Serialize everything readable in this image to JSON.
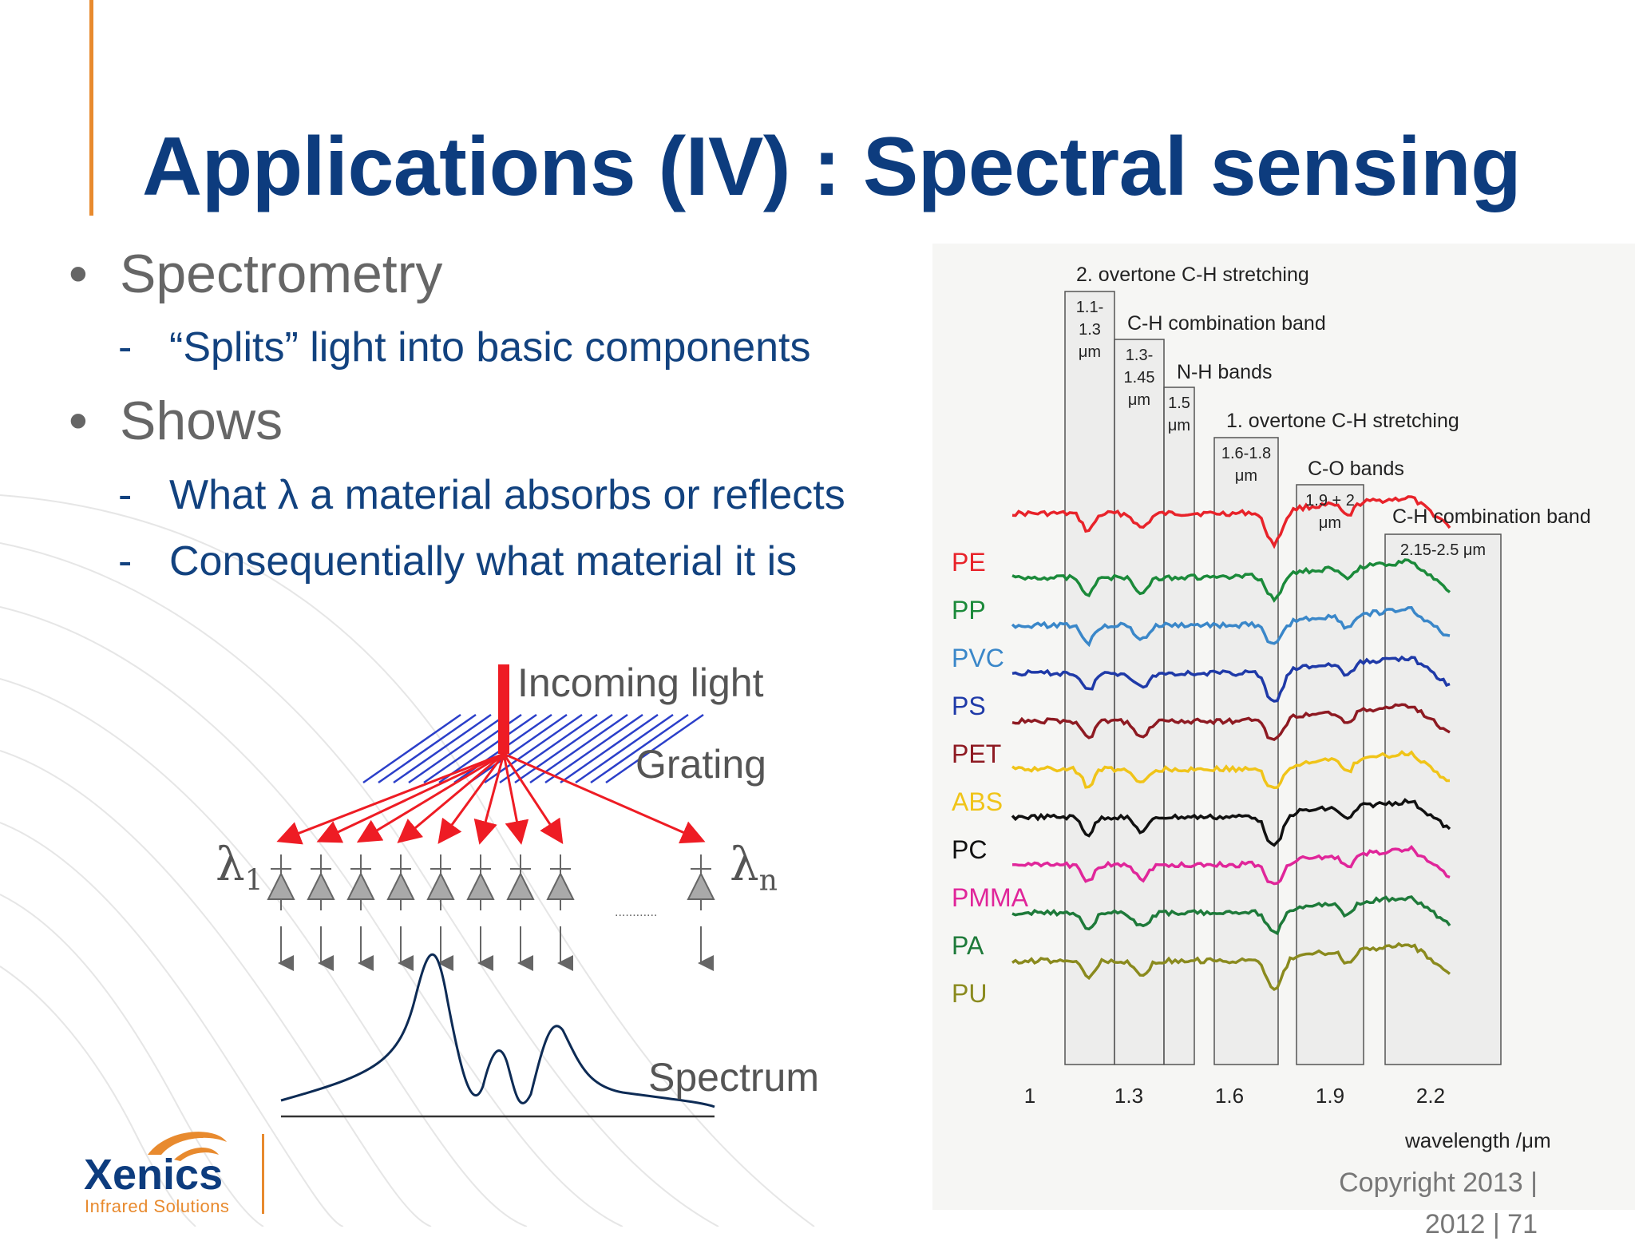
{
  "title": "Applications (IV) : Spectral sensing",
  "bullets": [
    {
      "text": "Spectrometry",
      "sub": [
        "“Splits” light into basic components"
      ]
    },
    {
      "text": "Shows",
      "sub": [
        "What λ a material absorbs or reflects",
        "Consequentially what material it is"
      ]
    }
  ],
  "diagram": {
    "incoming_label": "Incoming light",
    "grating_label": "Grating",
    "spectrum_label": "Spectrum",
    "lambda_symbol": "λ",
    "lambda_first_sub": "1",
    "lambda_last_sub": "n",
    "dots": "............",
    "beam_color": "#ee1c24",
    "grating_color": "#2b3fc9",
    "spectrum_color": "#0d2b55"
  },
  "spectra_chart": {
    "bands": [
      {
        "top": "2. overtone C-H stretching",
        "box": [
          "1.1-",
          "1.3",
          "μm"
        ]
      },
      {
        "top": "C-H combination band",
        "box": [
          "1.3-",
          "1.45",
          "μm"
        ]
      },
      {
        "top": "N-H bands",
        "box": [
          "1.5",
          "μm"
        ]
      },
      {
        "top": "1. overtone C-H stretching",
        "box": [
          "1.6-1.8",
          "μm"
        ]
      },
      {
        "top": "C-O bands",
        "box": [
          "1.9 + 2",
          "μm"
        ]
      },
      {
        "top": "C-H combination band",
        "box": [
          "2.15-2.5 μm"
        ]
      }
    ],
    "materials": [
      {
        "name": "PE",
        "color": "#e8232a"
      },
      {
        "name": "PP",
        "color": "#1b8a3a"
      },
      {
        "name": "PVC",
        "color": "#3a87c9"
      },
      {
        "name": "PS",
        "color": "#1f3aa8"
      },
      {
        "name": "PET",
        "color": "#8e1a22"
      },
      {
        "name": "ABS",
        "color": "#f0c419"
      },
      {
        "name": "PC",
        "color": "#111111"
      },
      {
        "name": "PMMA",
        "color": "#e0269a"
      },
      {
        "name": "PA",
        "color": "#1e7a3a"
      },
      {
        "name": "PU",
        "color": "#8a8a1e"
      }
    ],
    "x_ticks": [
      "1",
      "1.3",
      "1.6",
      "1.9",
      "2.2"
    ],
    "x_label": "wavelength /μm"
  },
  "logo": {
    "name": "Xenics",
    "tagline": "Infrared Solutions"
  },
  "footer": {
    "copyright": "Copyright 2013 |",
    "page": "2012 | 71"
  }
}
